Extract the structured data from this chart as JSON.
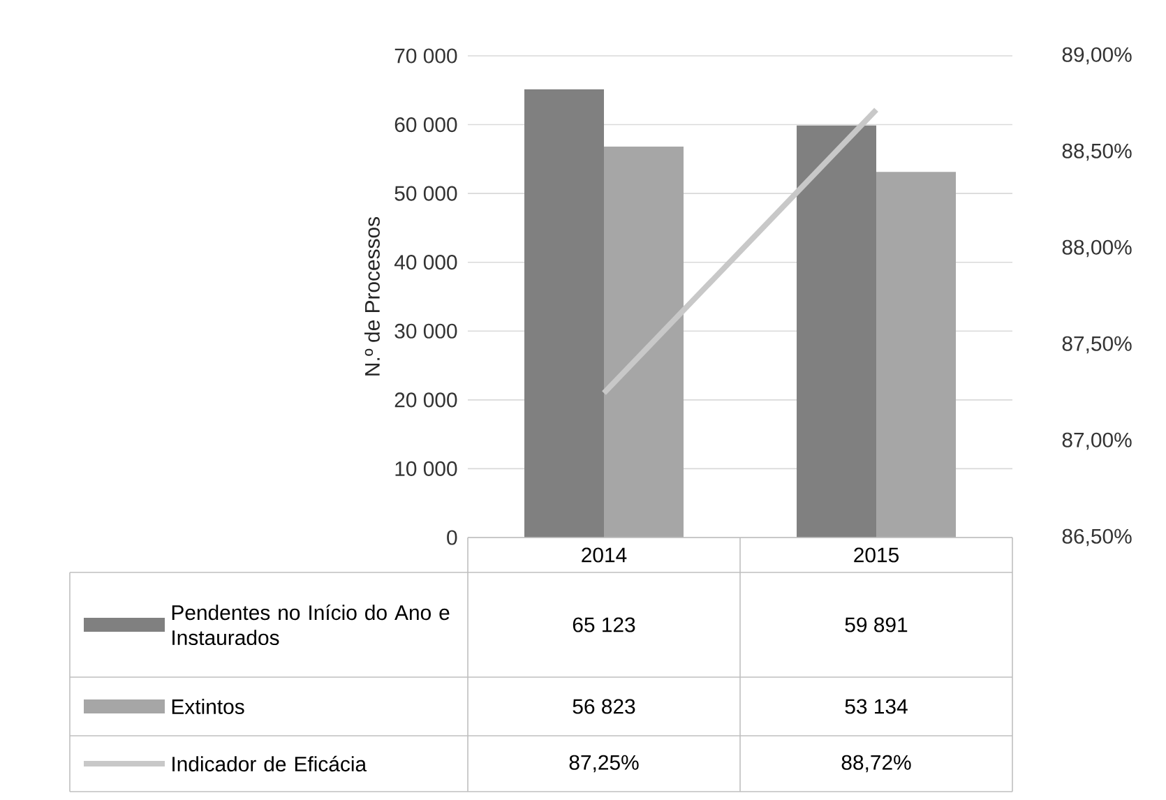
{
  "chart_data": {
    "type": "bar",
    "categories": [
      "2014",
      "2015"
    ],
    "ylabel": "N.º de Processos",
    "ylim": [
      0,
      70000
    ],
    "yticks": [
      0,
      {
        "value": 10000,
        "label": "10 000"
      },
      {
        "value": 20000,
        "label": "20 000"
      },
      {
        "value": 30000,
        "label": "30 000"
      },
      {
        "value": 40000,
        "label": "40 000"
      },
      {
        "value": 50000,
        "label": "50 000"
      },
      {
        "value": 60000,
        "label": "60 000"
      },
      {
        "value": 70000,
        "label": "70 000"
      }
    ],
    "y2lim": [
      86.5,
      89
    ],
    "y2ticks": [
      {
        "value": 86.5,
        "label": "86,50%"
      },
      {
        "value": 87,
        "label": "87,00%"
      },
      {
        "value": 87.5,
        "label": "87,50%"
      },
      {
        "value": 88,
        "label": "88,00%"
      },
      {
        "value": 88.5,
        "label": "88,50%"
      },
      {
        "value": 89,
        "label": "89,00%"
      }
    ],
    "grid": "y",
    "legend": "bottom",
    "series": [
      {
        "name": "Pendentes no Início do Ano e Instaurados",
        "color": "#808080",
        "values": [
          65123,
          59891
        ],
        "value_labels": [
          "65 123",
          "59 891"
        ]
      },
      {
        "name": "Extintos",
        "color": "#a6a6a6",
        "values": [
          56823,
          53134
        ],
        "value_labels": [
          "56 823",
          "53 134"
        ]
      },
      {
        "name": "Indicador de Eficácia",
        "type": "line",
        "axis": "y2",
        "color": "#c8c8c8",
        "values": [
          87.25,
          88.72
        ],
        "value_labels": [
          "87,25%",
          "88,72%"
        ]
      }
    ]
  }
}
